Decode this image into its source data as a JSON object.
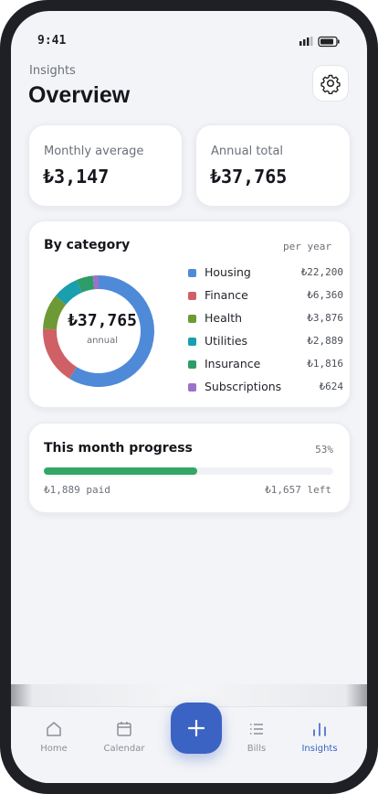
{
  "status_bar": {
    "time": "9:41"
  },
  "header": {
    "eyebrow": "Insights",
    "title": "Overview"
  },
  "summary": [
    {
      "label": "Monthly average",
      "value": "₺3,147"
    },
    {
      "label": "Annual total",
      "value": "₺37,765"
    }
  ],
  "category_card": {
    "title": "By category",
    "period": "per year",
    "chart_data": {
      "type": "donut",
      "center_value": "₺37,765",
      "center_label": "annual",
      "categories": [
        "Housing",
        "Finance",
        "Health",
        "Utilities",
        "Insurance",
        "Subscriptions"
      ],
      "values": [
        22200,
        6360,
        3876,
        2889,
        1816,
        624
      ],
      "value_labels": [
        "₺22,200",
        "₺6,360",
        "₺3,876",
        "₺2,889",
        "₺1,816",
        "₺624"
      ],
      "colors": [
        "#4f8ad8",
        "#cf6166",
        "#6e9a35",
        "#1a9fae",
        "#2e9c68",
        "#9a72c8"
      ]
    }
  },
  "progress": {
    "title": "This month progress",
    "percent": 53,
    "percent_label": "53%",
    "paid": "₺1,889 paid",
    "left": "₺1,657 left",
    "color": "#34a665"
  },
  "nav": {
    "items": [
      "Home",
      "Calendar",
      "Bills",
      "Insights"
    ]
  }
}
